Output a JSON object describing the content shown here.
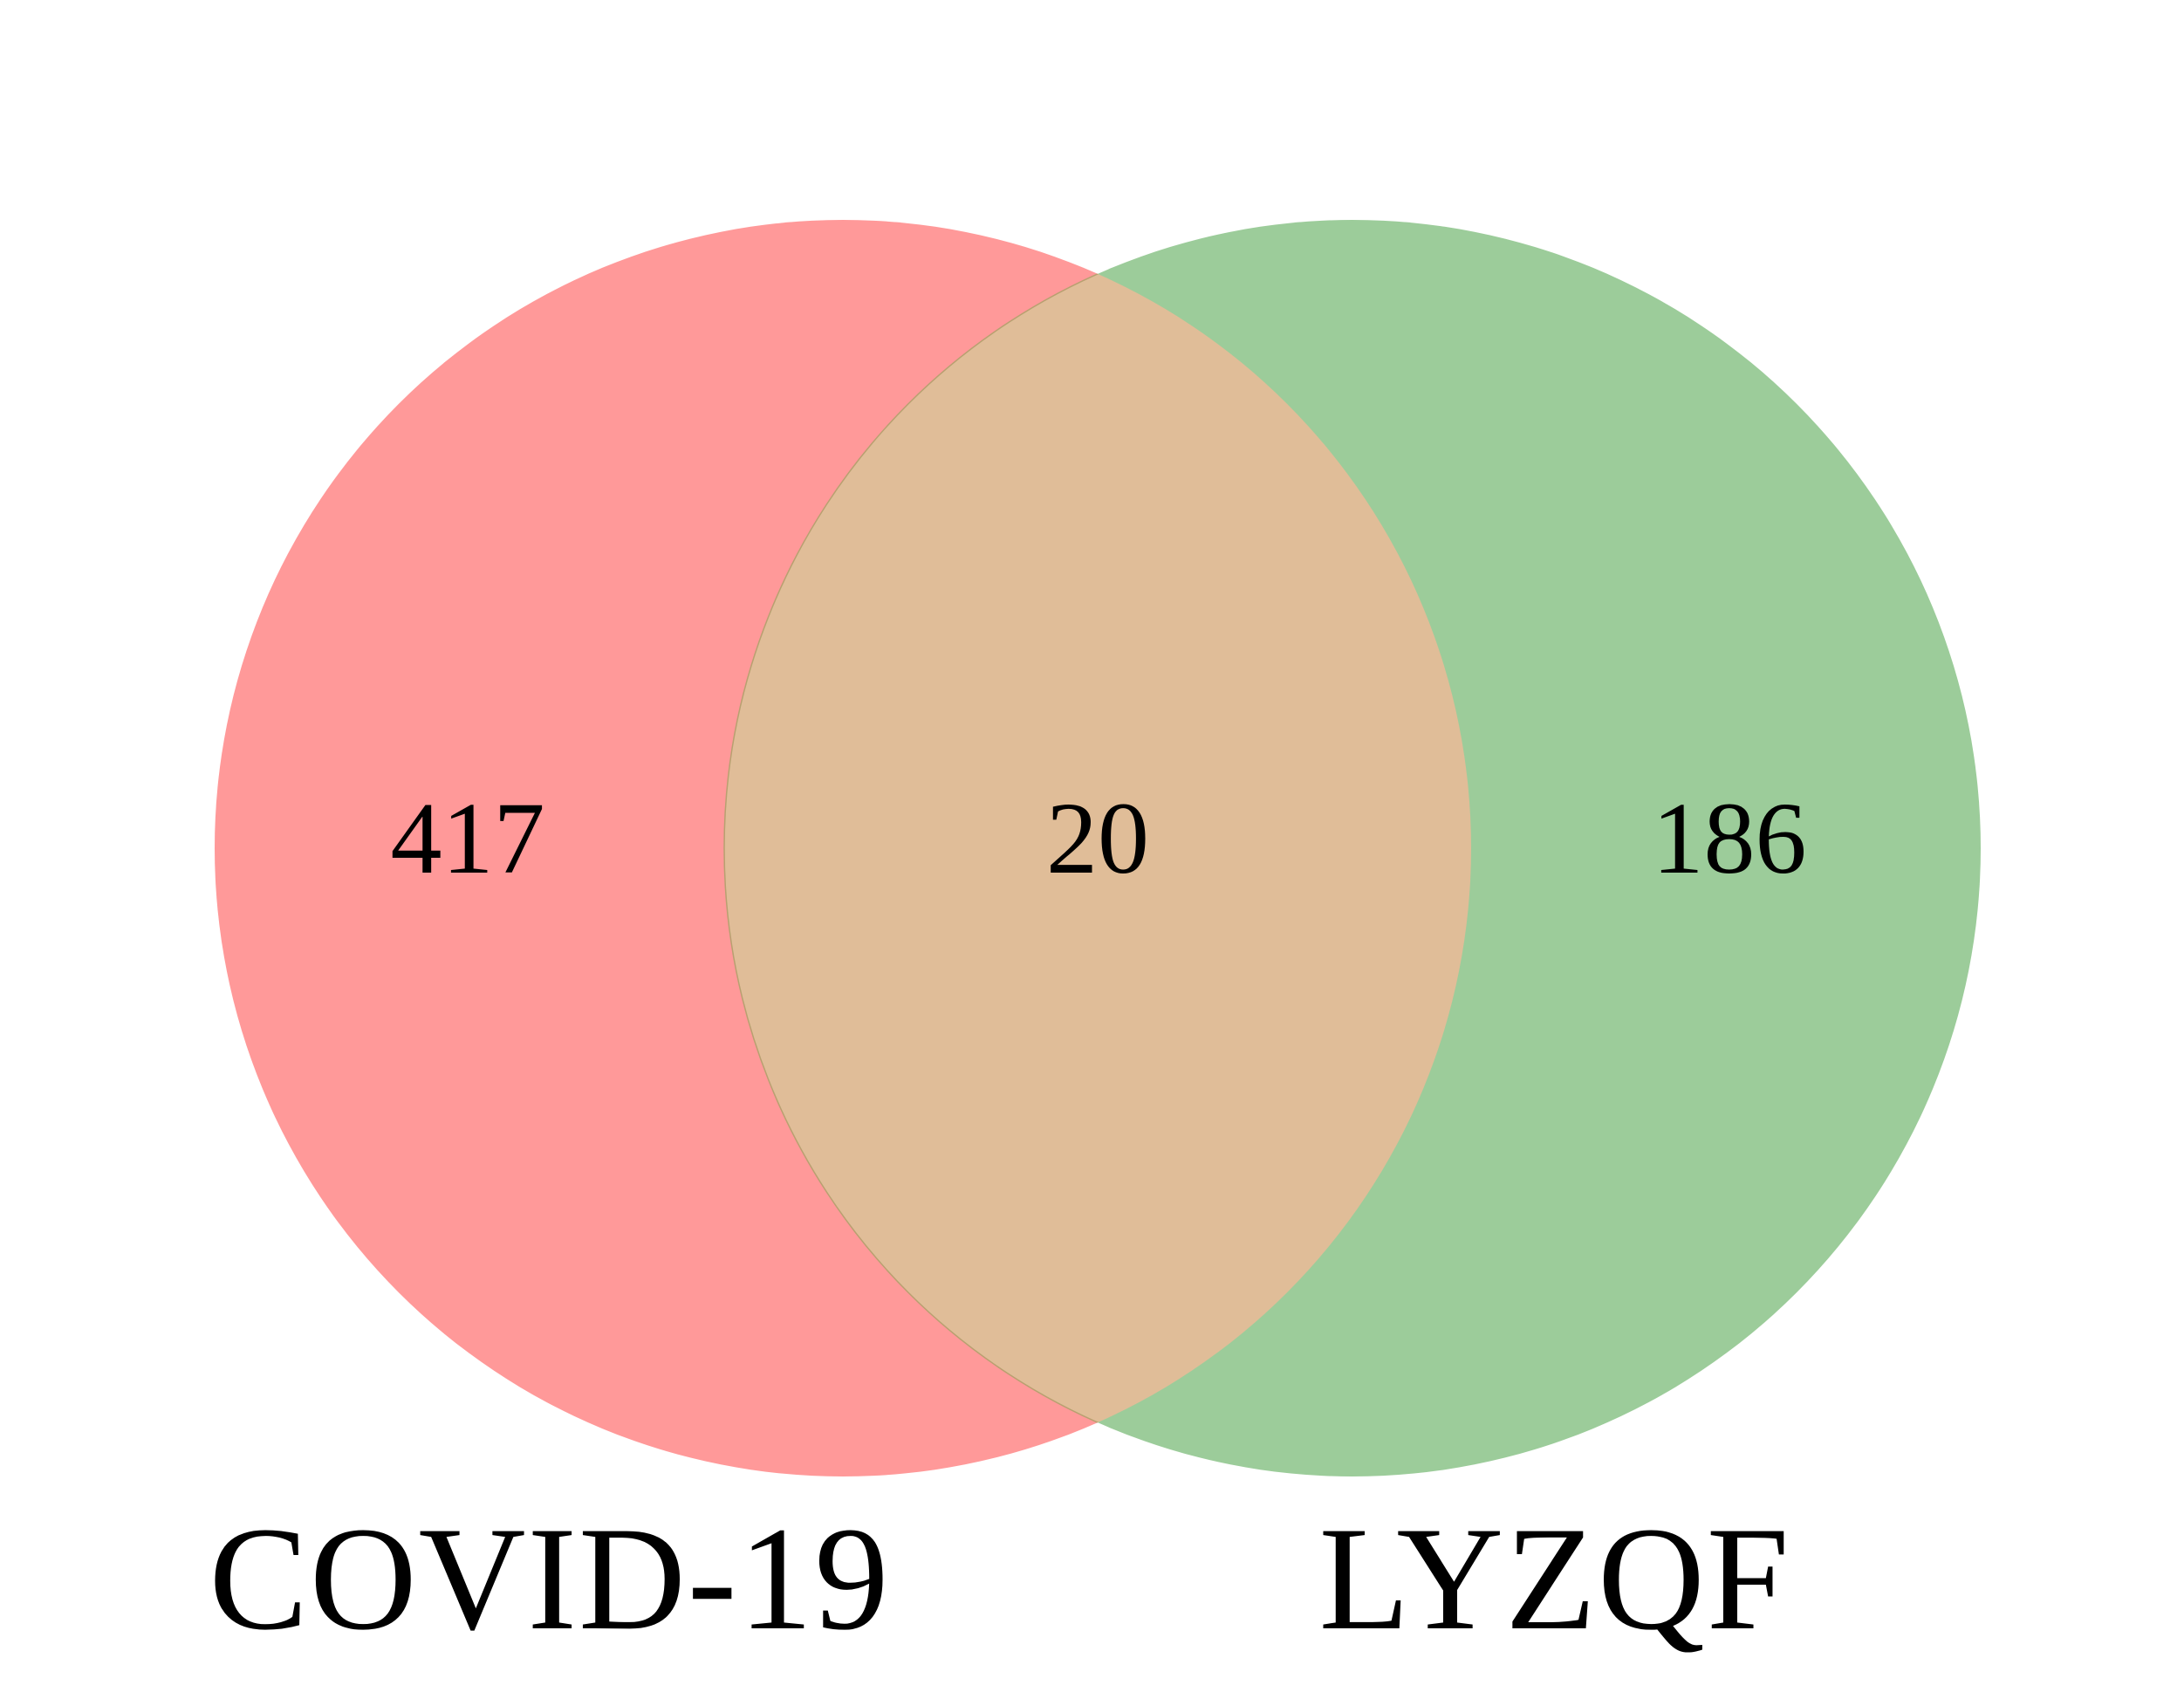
{
  "diagram": {
    "type": "venn",
    "sets": [
      {
        "name": "COVID-19",
        "color": "#FF9999"
      },
      {
        "name": "LYZQF",
        "color": "#9CCC9A"
      }
    ],
    "overlap_color": "#E0BD98",
    "regions": {
      "covid_only": "417",
      "intersection": "20",
      "lyzqf_only": "186"
    }
  }
}
